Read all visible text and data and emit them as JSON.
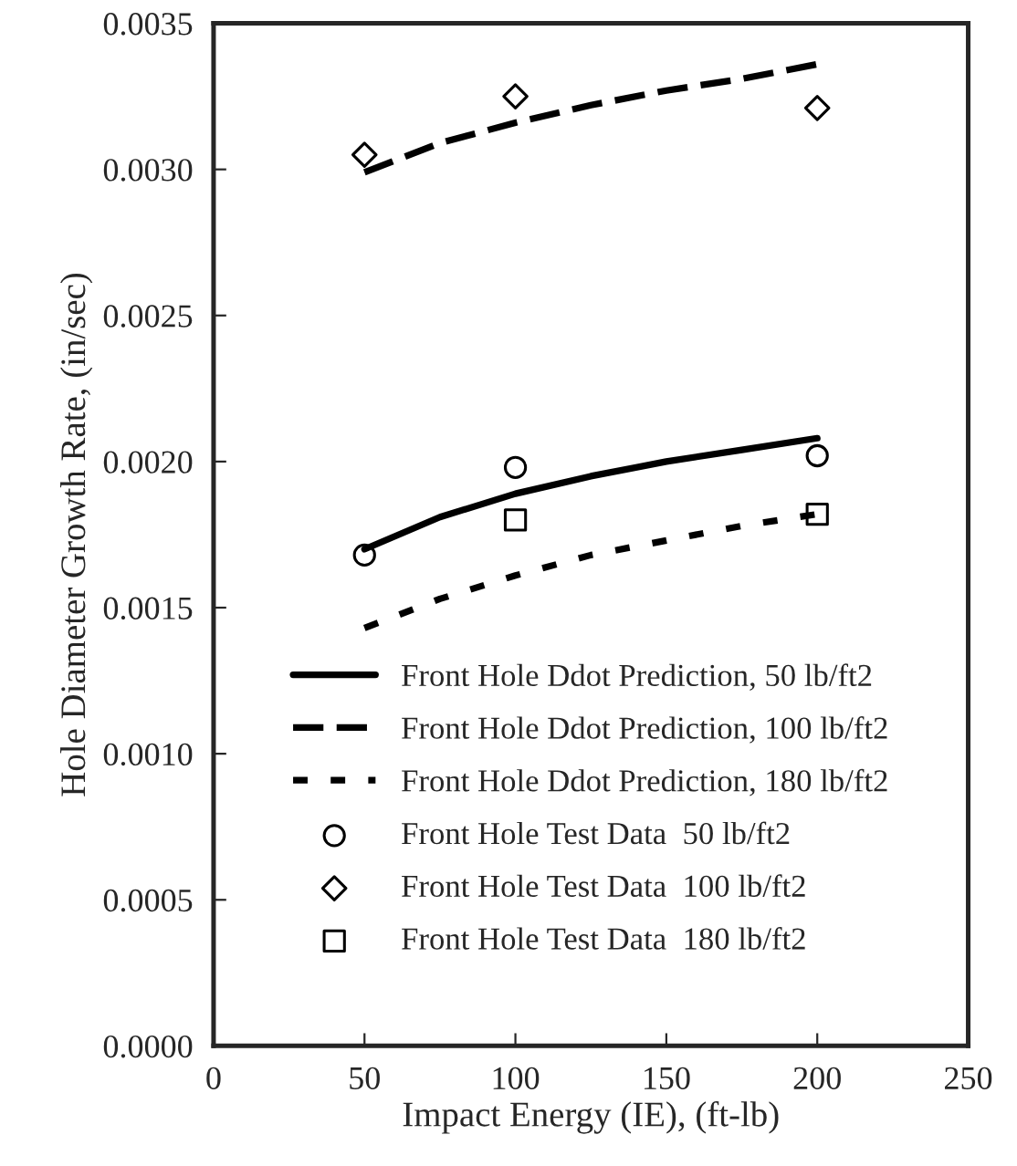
{
  "chart_data": {
    "type": "line",
    "xlabel": "Impact Energy (IE), (ft-lb)",
    "ylabel": "Hole Diameter Growth Rate, (in/sec)",
    "xlim": [
      0,
      250
    ],
    "xticks": [
      0,
      50,
      100,
      150,
      200,
      250
    ],
    "ylim": [
      0,
      0.0035
    ],
    "yticks": [
      {
        "value": 0,
        "label": "0.0000"
      },
      {
        "value": 0.0005,
        "label": "0.0005"
      },
      {
        "value": 0.001,
        "label": "0.0010"
      },
      {
        "value": 0.0015,
        "label": "0.0015"
      },
      {
        "value": 0.002,
        "label": "0.0020"
      },
      {
        "value": 0.0025,
        "label": "0.0025"
      },
      {
        "value": 0.003,
        "label": "0.0030"
      },
      {
        "value": 0.0035,
        "label": "0.0035"
      }
    ],
    "grid": false,
    "legend": "bottom",
    "series": [
      {
        "name": "Front Hole Ddot Prediction, 50 lb/ft2",
        "line_style": "solid",
        "color": "#000000",
        "x": [
          50,
          75,
          100,
          125,
          150,
          175,
          200
        ],
        "values": [
          0.0017,
          0.00181,
          0.00189,
          0.00195,
          0.002,
          0.00204,
          0.00208
        ]
      },
      {
        "name": "Front Hole Ddot Prediction, 100 lb/ft2",
        "line_style": "dashed",
        "color": "#000000",
        "x": [
          50,
          75,
          100,
          125,
          150,
          175,
          200
        ],
        "values": [
          0.00299,
          0.00309,
          0.00316,
          0.00322,
          0.00327,
          0.00331,
          0.00336
        ]
      },
      {
        "name": "Front Hole Ddot Prediction, 180 lb/ft2",
        "line_style": "dashed",
        "color": "#000000",
        "x": [
          50,
          75,
          100,
          125,
          150,
          175,
          200
        ],
        "values": [
          0.00143,
          0.00153,
          0.00161,
          0.00168,
          0.00173,
          0.00178,
          0.00182
        ]
      },
      {
        "name": "Front Hole Test Data  50 lb/ft2",
        "type": "scatter",
        "marker": "circle",
        "color": "#000000",
        "x": [
          50,
          100,
          200
        ],
        "values": [
          0.00168,
          0.00198,
          0.00202
        ]
      },
      {
        "name": "Front Hole Test Data  100 lb/ft2",
        "type": "scatter",
        "marker": "diamond",
        "color": "#000000",
        "x": [
          50,
          100,
          200
        ],
        "values": [
          0.00305,
          0.00325,
          0.00321
        ]
      },
      {
        "name": "Front Hole Test Data  180 lb/ft2",
        "type": "scatter",
        "marker": "square",
        "color": "#000000",
        "x": [
          100,
          200
        ],
        "values": [
          0.0018,
          0.00182
        ]
      }
    ]
  }
}
